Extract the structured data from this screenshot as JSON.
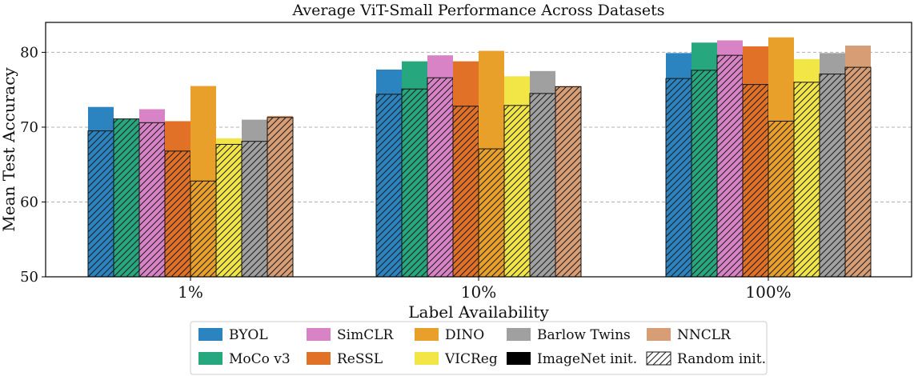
{
  "chart_data": {
    "type": "bar",
    "title": "Average ViT-Small Performance Across Datasets",
    "xlabel": "Label Availability",
    "ylabel": "Mean Test Accuracy",
    "ylim": [
      50,
      84
    ],
    "yticks": [
      50,
      60,
      70,
      80
    ],
    "grid": "y-dashed",
    "categories": [
      "1%",
      "10%",
      "100%"
    ],
    "series": [
      {
        "name": "BYOL",
        "color": "#2b83c0",
        "imagenet": [
          72.7,
          77.7,
          79.9
        ],
        "random": [
          69.5,
          74.4,
          76.5
        ]
      },
      {
        "name": "MoCo v3",
        "color": "#27a77e",
        "imagenet": [
          71.1,
          78.8,
          81.3
        ],
        "random": [
          71.1,
          75.1,
          77.6
        ]
      },
      {
        "name": "SimCLR",
        "color": "#d783c6",
        "imagenet": [
          72.4,
          79.6,
          81.6
        ],
        "random": [
          70.6,
          76.6,
          79.6
        ]
      },
      {
        "name": "ReSSL",
        "color": "#e07126",
        "imagenet": [
          70.8,
          78.8,
          80.8
        ],
        "random": [
          66.8,
          72.8,
          75.7
        ]
      },
      {
        "name": "DINO",
        "color": "#e8a02a",
        "imagenet": [
          75.5,
          80.2,
          82.0
        ],
        "random": [
          62.8,
          67.1,
          70.8
        ]
      },
      {
        "name": "VICReg",
        "color": "#f2e646",
        "imagenet": [
          68.5,
          76.8,
          79.1
        ],
        "random": [
          67.7,
          72.9,
          76.0
        ]
      },
      {
        "name": "Barlow Twins",
        "color": "#a0a0a0",
        "imagenet": [
          71.0,
          77.5,
          79.9
        ],
        "random": [
          68.1,
          74.5,
          77.1
        ]
      },
      {
        "name": "NNCLR",
        "color": "#d79d75",
        "imagenet": [
          71.5,
          75.5,
          80.9
        ],
        "random": [
          71.3,
          75.4,
          78.0
        ]
      }
    ],
    "legend": {
      "placement": "bottom-center",
      "entries": [
        "BYOL",
        "SimCLR",
        "DINO",
        "Barlow Twins",
        "NNCLR",
        "MoCo v3",
        "ReSSL",
        "VICReg",
        "ImageNet init.",
        "Random init."
      ],
      "imagenet_label": "ImageNet init.",
      "random_label": "Random init."
    }
  }
}
